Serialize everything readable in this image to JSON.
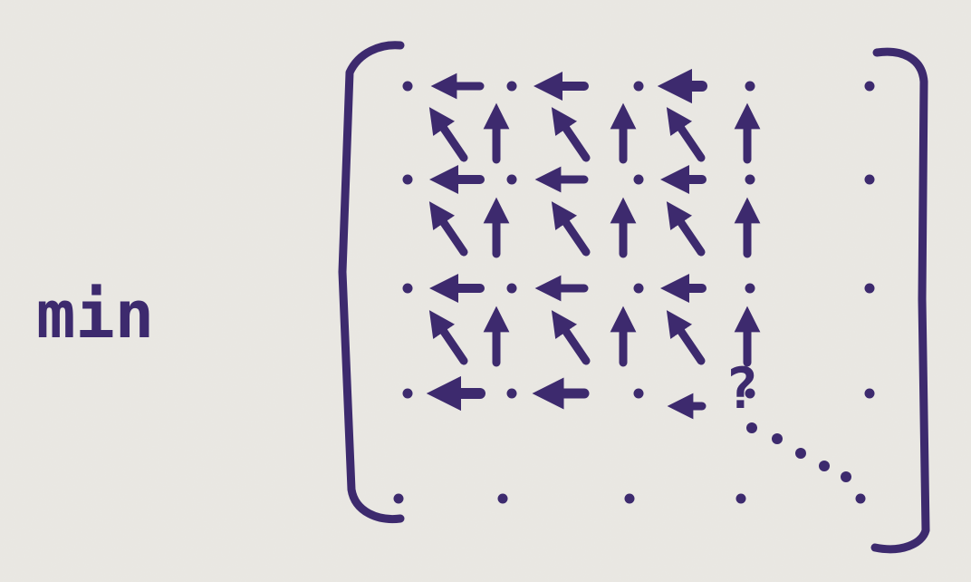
{
  "drawing": {
    "label": "min",
    "unknown_mark": "?",
    "ink_color": "#3d2a6e",
    "paper_color": "#e9e7e2",
    "grid": {
      "rows": 5,
      "cols": 5,
      "cell_types": [
        "dot",
        "arrow-left",
        "arrow-up",
        "arrow-up-left"
      ],
      "note": ""
    }
  }
}
